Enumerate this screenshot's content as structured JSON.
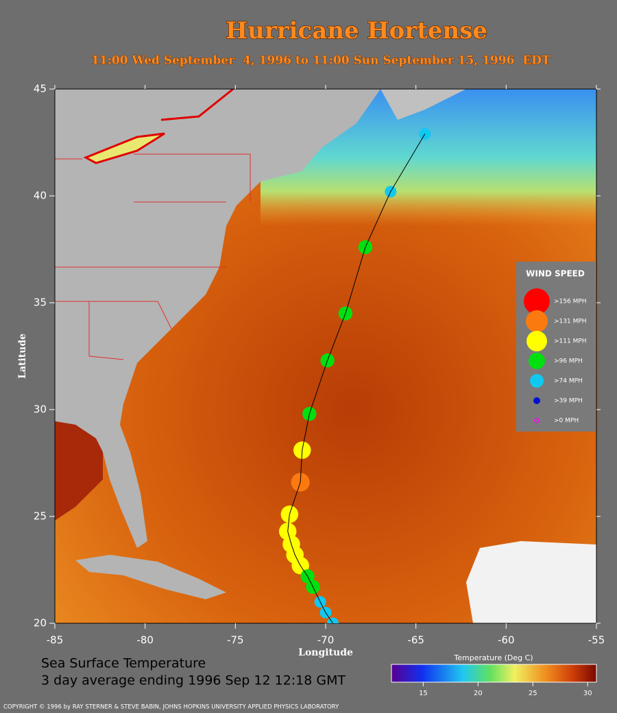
{
  "title": "Hurricane Hortense",
  "subtitle": "11:00 Wed September  4, 1996 to 11:00 Sun September 15, 1996  EDT",
  "chart_data": {
    "type": "scatter",
    "x_label": "Longitude",
    "y_label": "Latitude",
    "xlim": [
      -85,
      -55
    ],
    "ylim": [
      20,
      45
    ],
    "xticks": [
      -85,
      -80,
      -75,
      -70,
      -65,
      -60,
      -55
    ],
    "yticks": [
      20,
      25,
      30,
      35,
      40,
      45
    ],
    "legend": {
      "title": "WIND SPEED",
      "position": "right",
      "entries": [
        {
          "name": ">156 MPH",
          "color": "#ff0000"
        },
        {
          "name": ">131 MPH",
          "color": "#fb7a10"
        },
        {
          "name": ">111 MPH",
          "color": "#ffff00"
        },
        {
          "name": ">96 MPH",
          "color": "#00e010"
        },
        {
          "name": ">74 MPH",
          "color": "#10c8f0"
        },
        {
          "name": ">39 MPH",
          "color": "#0010d0"
        },
        {
          "name": ">0 MPH",
          "color": "#ff00ff"
        }
      ]
    },
    "track": {
      "line_color": "#000000",
      "x": [
        -64.5,
        -66.4,
        -67.8,
        -68.9,
        -69.9,
        -70.9,
        -71.3,
        -71.4,
        -72.0,
        -72.1,
        -71.9,
        -71.7,
        -71.4,
        -71.0,
        -70.7,
        -70.3,
        -70.0,
        -69.6
      ],
      "y": [
        42.9,
        40.2,
        37.6,
        34.5,
        32.3,
        29.8,
        28.1,
        26.6,
        25.1,
        24.3,
        23.7,
        23.2,
        22.7,
        22.2,
        21.7,
        21.0,
        20.5,
        20.0
      ],
      "wind": [
        ">74 MPH",
        ">74 MPH",
        ">96 MPH",
        ">96 MPH",
        ">96 MPH",
        ">96 MPH",
        ">111 MPH",
        ">131 MPH",
        ">111 MPH",
        ">111 MPH",
        ">111 MPH",
        ">111 MPH",
        ">111 MPH",
        ">96 MPH",
        ">96 MPH",
        ">74 MPH",
        ">74 MPH",
        ">74 MPH"
      ]
    },
    "colorbar": {
      "title": "Temperature (Deg C)",
      "lim": [
        12.1,
        30.8
      ],
      "ticks": [
        15,
        20,
        25,
        30
      ]
    }
  },
  "caption": [
    "Sea Surface Temperature",
    "3 day average ending 1996 Sep 12 12:18 GMT"
  ],
  "copyright": "COPYRIGHT © 1996 by RAY STERNER & STEVE BABIN, JOHNS HOPKINS UNIVERSITY APPLIED PHYSICS LABORATORY"
}
